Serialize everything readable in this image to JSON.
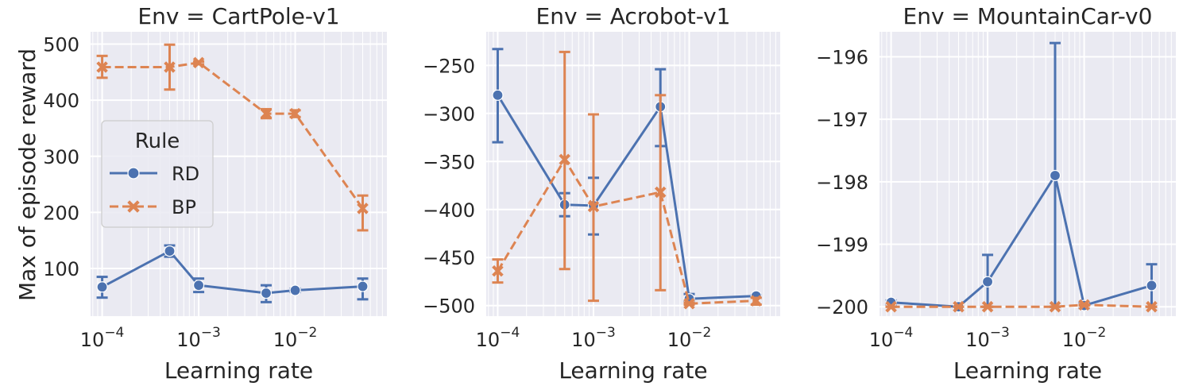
{
  "figure": {
    "ylabel": "Max of episode reward",
    "xlabel": "Learning rate",
    "xticks": [
      {
        "value": 0.0001,
        "base": "10",
        "exp": "−4"
      },
      {
        "value": 0.001,
        "base": "10",
        "exp": "−3"
      },
      {
        "value": 0.01,
        "base": "10",
        "exp": "−2"
      }
    ]
  },
  "legend": {
    "title": "Rule",
    "entries": [
      {
        "name": "RD",
        "color": "#4c72b0",
        "dashed": false,
        "marker": "circle"
      },
      {
        "name": "BP",
        "color": "#dd8452",
        "dashed": true,
        "marker": "x"
      }
    ]
  },
  "chart_data": [
    {
      "type": "line",
      "title": "Env = CartPole-v1",
      "x": [
        0.0001,
        0.0005,
        0.001,
        0.005,
        0.01,
        0.05
      ],
      "xlim_log10": [
        -4.12,
        -1.05
      ],
      "ylim": [
        15,
        522
      ],
      "yticks": [
        100,
        200,
        300,
        400,
        500
      ],
      "ytick_labels": [
        "100",
        "200",
        "300",
        "400",
        "500"
      ],
      "series": [
        {
          "name": "RD",
          "values": [
            67,
            131,
            70,
            56,
            61,
            68
          ],
          "err_low": [
            48,
            121,
            58,
            40,
            58,
            45
          ],
          "err_high": [
            85,
            141,
            82,
            70,
            64,
            82
          ]
        },
        {
          "name": "BP",
          "values": [
            459,
            459,
            467,
            376,
            376,
            207
          ],
          "err_low": [
            440,
            419,
            464,
            368,
            370,
            168
          ],
          "err_high": [
            479,
            499,
            469,
            384,
            382,
            230
          ]
        }
      ]
    },
    {
      "type": "line",
      "title": "Env = Acrobot-v1",
      "x": [
        0.0001,
        0.0005,
        0.001,
        0.005,
        0.01,
        0.05
      ],
      "xlim_log10": [
        -4.12,
        -1.05
      ],
      "ylim": [
        -511,
        -215
      ],
      "yticks": [
        -500,
        -450,
        -400,
        -350,
        -300,
        -250
      ],
      "ytick_labels": [
        "−500",
        "−450",
        "−400",
        "−350",
        "−300",
        "−250"
      ],
      "series": [
        {
          "name": "RD",
          "values": [
            -281,
            -395,
            -396,
            -293,
            -493,
            -490
          ],
          "err_low": [
            -330,
            -407,
            -426,
            -334,
            -496,
            -491
          ],
          "err_high": [
            -233,
            -383,
            -367,
            -254,
            -488,
            -489
          ]
        },
        {
          "name": "BP",
          "values": [
            -464,
            -348,
            -397,
            -382,
            -498,
            -495
          ],
          "err_low": [
            -476,
            -462,
            -495,
            -484,
            -499,
            -499
          ],
          "err_high": [
            -452,
            -236,
            -301,
            -281,
            -497,
            -492
          ]
        }
      ]
    },
    {
      "type": "line",
      "title": "Env = MountainCar-v0",
      "x": [
        0.0001,
        0.0005,
        0.001,
        0.005,
        0.01,
        0.05
      ],
      "xlim_log10": [
        -4.12,
        -1.05
      ],
      "ylim": [
        -200.15,
        -195.6
      ],
      "yticks": [
        -200,
        -199,
        -198,
        -197,
        -196
      ],
      "ytick_labels": [
        "−200",
        "−199",
        "−198",
        "−197",
        "−196"
      ],
      "series": [
        {
          "name": "RD",
          "values": [
            -199.93,
            -200.0,
            -199.6,
            -197.9,
            -199.98,
            -199.66
          ],
          "err_low": [
            -199.96,
            -200.0,
            -200.0,
            -200.0,
            -200.02,
            -200.0
          ],
          "err_high": [
            -199.9,
            -200.0,
            -199.17,
            -195.78,
            -199.94,
            -199.32
          ]
        },
        {
          "name": "BP",
          "values": [
            -200.0,
            -200.0,
            -200.0,
            -200.0,
            -199.97,
            -200.0
          ],
          "err_low": [
            -200.0,
            -200.0,
            -200.0,
            -200.0,
            -199.98,
            -200.0
          ],
          "err_high": [
            -200.0,
            -200.0,
            -200.0,
            -200.0,
            -199.96,
            -200.0
          ]
        }
      ]
    }
  ]
}
